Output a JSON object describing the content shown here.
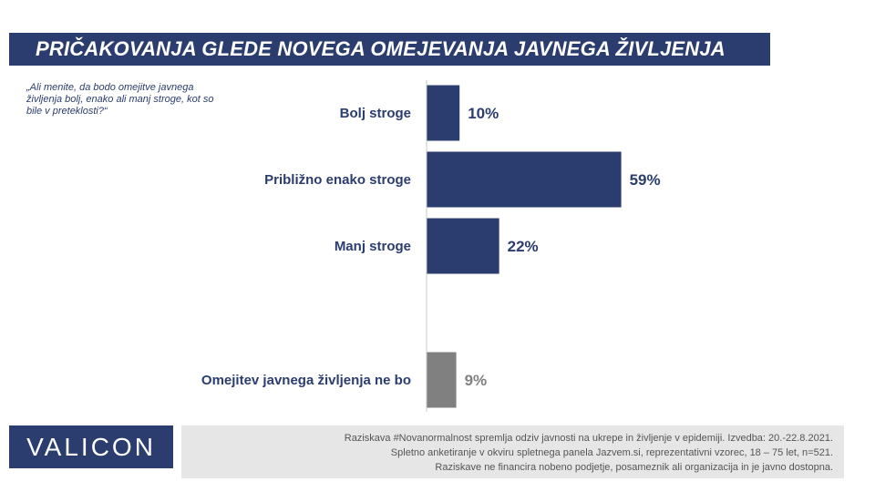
{
  "title": "PRIČAKOVANJA GLEDE NOVEGA OMEJEVANJA JAVNEGA ŽIVLJENJA",
  "question": "„Ali menite, da bodo omejitve javnega življenja bolj, enako ali manj stroge, kot so bile v preteklosti?“",
  "colors": {
    "primary": "#2a3d6e",
    "other": "#808080",
    "footer_bg": "#e6e6e6"
  },
  "chart_data": {
    "type": "bar",
    "orientation": "horizontal",
    "categories": [
      "Bolj stroge",
      "Približno enako stroge",
      "Manj stroge",
      "Omejitev javnega življenja ne bo"
    ],
    "values": [
      10,
      59,
      22,
      9
    ],
    "value_labels": [
      "10%",
      "59%",
      "22%",
      "9%"
    ],
    "bar_colors": [
      "#2a3d6e",
      "#2a3d6e",
      "#2a3d6e",
      "#808080"
    ],
    "label_colors": [
      "#2a3d6e",
      "#2a3d6e",
      "#2a3d6e",
      "#808080"
    ],
    "xlim": [
      0,
      100
    ],
    "grid": false,
    "legend": "none"
  },
  "footer": {
    "logo_text": "VALICON",
    "note_lines": [
      "Raziskava #Novanormalnost spremlja odziv javnosti na ukrepe in življenje v epidemiji. Izvedba: 20.-22.8.2021.",
      "Spletno anketiranje v okviru spletnega panela Jazvem.si, reprezentativni vzorec, 18 – 75 let, n=521.",
      "Raziskave ne financira nobeno podjetje, posameznik ali organizacija in je javno dostopna."
    ]
  }
}
